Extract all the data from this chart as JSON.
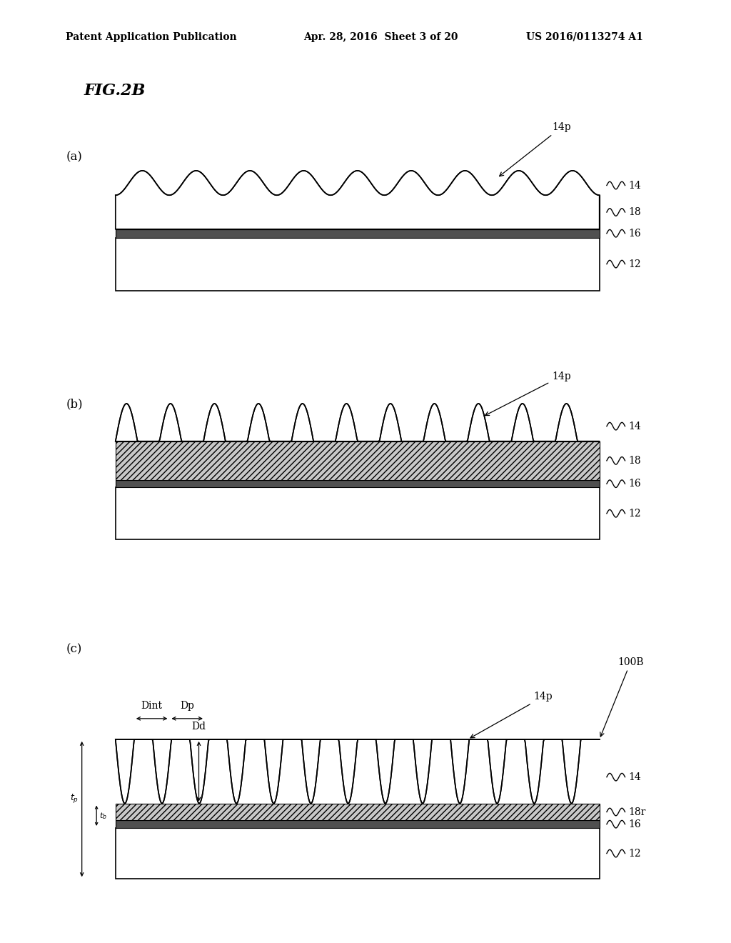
{
  "bg_color": "#ffffff",
  "header_left": "Patent Application Publication",
  "header_mid": "Apr. 28, 2016  Sheet 3 of 20",
  "header_right": "US 2016/0113274 A1",
  "fig_title": "FIG.2B"
}
